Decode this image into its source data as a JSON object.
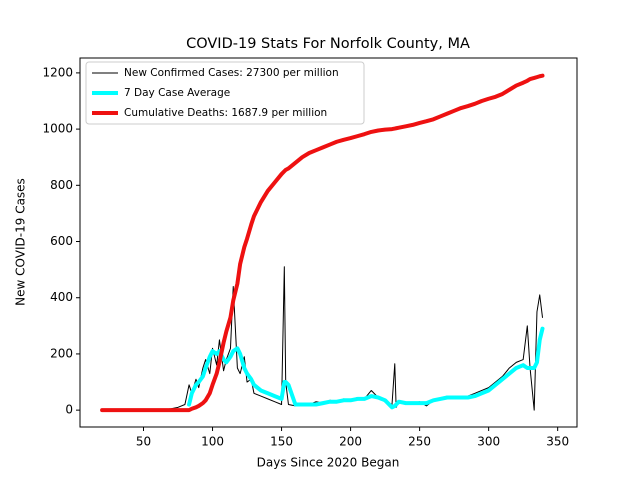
{
  "chart_data": {
    "type": "line",
    "title": "COVID-19 Stats For Norfolk County, MA",
    "xlabel": "Days Since 2020 Began",
    "ylabel": "New COVID-19 Cases",
    "xlim": [
      4,
      364
    ],
    "ylim": [
      -60,
      1253
    ],
    "xticks": [
      50,
      100,
      150,
      200,
      250,
      300,
      350
    ],
    "yticks": [
      0,
      200,
      400,
      600,
      800,
      1000,
      1200
    ],
    "legend": "upper left",
    "x": [
      20,
      30,
      40,
      50,
      60,
      70,
      75,
      80,
      83,
      85,
      88,
      90,
      93,
      95,
      98,
      100,
      103,
      105,
      108,
      110,
      113,
      115,
      118,
      120,
      123,
      125,
      128,
      130,
      135,
      140,
      145,
      150,
      152,
      153,
      155,
      160,
      165,
      170,
      175,
      180,
      185,
      190,
      195,
      200,
      205,
      210,
      215,
      220,
      225,
      230,
      232,
      233,
      235,
      240,
      245,
      250,
      255,
      260,
      265,
      270,
      275,
      280,
      285,
      290,
      295,
      300,
      305,
      310,
      315,
      320,
      325,
      328,
      330,
      333,
      335,
      337,
      339
    ],
    "series": [
      {
        "name": "New Confirmed Cases: 27300 per million",
        "color": "#000000",
        "linewidth": 1,
        "values": [
          0,
          0,
          0,
          0,
          0,
          5,
          10,
          20,
          90,
          60,
          110,
          80,
          150,
          180,
          130,
          220,
          160,
          250,
          140,
          180,
          220,
          440,
          150,
          130,
          190,
          100,
          110,
          60,
          50,
          40,
          30,
          20,
          510,
          100,
          20,
          15,
          25,
          20,
          30,
          25,
          35,
          30,
          40,
          35,
          45,
          40,
          70,
          45,
          30,
          20,
          165,
          10,
          30,
          20,
          25,
          30,
          15,
          35,
          40,
          50,
          40,
          45,
          50,
          60,
          70,
          80,
          100,
          120,
          150,
          170,
          180,
          300,
          150,
          0,
          350,
          410,
          330
        ]
      },
      {
        "name": "7 Day Case Average",
        "color": "#00ffff",
        "linewidth": 4,
        "values": [
          null,
          null,
          null,
          null,
          null,
          null,
          null,
          null,
          20,
          60,
          90,
          100,
          120,
          150,
          190,
          210,
          200,
          210,
          180,
          170,
          190,
          210,
          220,
          200,
          150,
          130,
          110,
          90,
          70,
          60,
          50,
          40,
          100,
          100,
          90,
          20,
          20,
          20,
          20,
          25,
          30,
          30,
          35,
          35,
          40,
          40,
          50,
          45,
          35,
          10,
          15,
          20,
          30,
          25,
          25,
          25,
          25,
          35,
          40,
          45,
          45,
          45,
          45,
          50,
          60,
          70,
          90,
          110,
          130,
          150,
          160,
          150,
          150,
          150,
          170,
          250,
          290
        ]
      },
      {
        "name": "Cumulative Deaths: 1687.9 per million",
        "color": "#ee1111",
        "linewidth": 4,
        "values": [
          0,
          0,
          0,
          0,
          0,
          0,
          0,
          0,
          0,
          5,
          10,
          15,
          25,
          35,
          60,
          90,
          130,
          170,
          240,
          280,
          330,
          390,
          450,
          520,
          580,
          610,
          660,
          690,
          740,
          780,
          810,
          840,
          850,
          855,
          860,
          880,
          900,
          915,
          925,
          935,
          945,
          955,
          962,
          968,
          975,
          982,
          990,
          995,
          998,
          1000,
          1002,
          1003,
          1005,
          1010,
          1015,
          1022,
          1028,
          1035,
          1045,
          1055,
          1065,
          1075,
          1082,
          1090,
          1100,
          1108,
          1115,
          1125,
          1140,
          1155,
          1165,
          1172,
          1178,
          1182,
          1185,
          1188,
          1190
        ]
      }
    ]
  }
}
